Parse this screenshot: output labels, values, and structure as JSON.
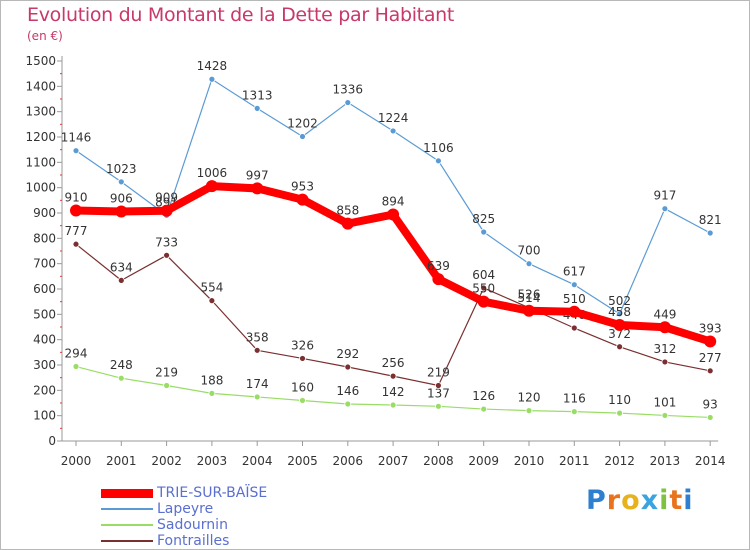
{
  "header": {
    "title": "Evolution du Montant de la Dette par Habitant",
    "unit": "(en €)"
  },
  "brand": {
    "logo_text": "Proxiti"
  },
  "chart_data": {
    "type": "line",
    "categories": [
      "2000",
      "2001",
      "2002",
      "2003",
      "2004",
      "2005",
      "2006",
      "2007",
      "2008",
      "2009",
      "2010",
      "2011",
      "2012",
      "2013",
      "2014"
    ],
    "ylim": [
      0,
      1500
    ],
    "yticks": [
      0,
      100,
      200,
      300,
      400,
      500,
      600,
      700,
      800,
      900,
      1000,
      1100,
      1200,
      1300,
      1400,
      1500
    ],
    "grid": false,
    "legend_position": "bottom-left",
    "series": [
      {
        "name": "Lapeyre",
        "color": "#5b9bd5",
        "values": [
          1146,
          1023,
          891,
          1428,
          1313,
          1202,
          1336,
          1224,
          1106,
          825,
          700,
          617,
          502,
          917,
          821
        ]
      },
      {
        "name": "Sadournin",
        "color": "#99dd66",
        "values": [
          294,
          248,
          219,
          188,
          174,
          160,
          146,
          142,
          137,
          126,
          120,
          116,
          110,
          101,
          93
        ]
      },
      {
        "name": "Fontrailles",
        "color": "#7a2f30",
        "values": [
          777,
          634,
          733,
          554,
          358,
          326,
          292,
          256,
          219,
          604,
          526,
          446,
          372,
          312,
          277
        ]
      },
      {
        "name": "TRIE-SUR-BAÏSE",
        "color": "#ff0000",
        "values": [
          910,
          906,
          909,
          1006,
          997,
          953,
          858,
          894,
          639,
          550,
          514,
          510,
          458,
          449,
          393
        ]
      }
    ],
    "data_labels": [
      [
        "1146",
        "1023",
        "891",
        "1428",
        "1313",
        "1202",
        "1336",
        "1224",
        "1106",
        "825",
        "700",
        "617",
        "502",
        "917",
        "821"
      ],
      [
        "294",
        "248",
        "219",
        "188",
        "174",
        "160",
        "146",
        "142",
        "137",
        "126",
        "120",
        "116",
        "110",
        "101",
        "93"
      ],
      [
        "777",
        "634",
        "733",
        "554",
        "358",
        "326",
        "292",
        "256",
        "219",
        "604",
        "526",
        "446",
        "372",
        "312",
        "277"
      ],
      [
        "910",
        "906",
        "909",
        "1006",
        "997",
        "953",
        "858",
        "894",
        "639",
        "550",
        "514",
        "510",
        "458",
        "449",
        "393"
      ]
    ]
  }
}
